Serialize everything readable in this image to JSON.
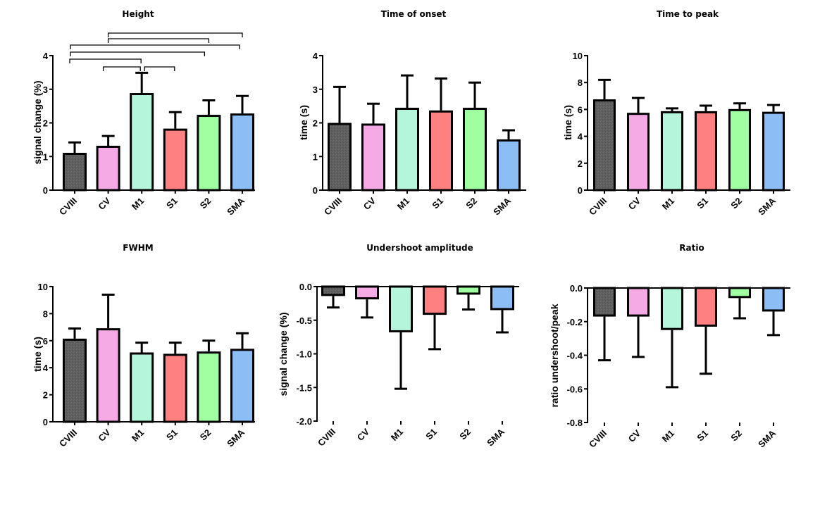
{
  "figure": {
    "categories": [
      "CVIII",
      "CV",
      "M1",
      "S1",
      "S2",
      "SMA"
    ],
    "colors": {
      "CVIII": "#5f5f5f",
      "CV": "#f5aae6",
      "M1": "#b4f5dc",
      "S1": "#ff8080",
      "S2": "#a0ffa0",
      "SMA": "#8cbef5",
      "outline": "#000000"
    }
  },
  "chart_data": [
    {
      "id": "height",
      "type": "bar",
      "title": "Height",
      "xlabel": "",
      "ylabel": "signal change (%)",
      "categories": [
        "CVIII",
        "CV",
        "M1",
        "S1",
        "S2",
        "SMA"
      ],
      "values": [
        1.11,
        1.32,
        2.89,
        1.83,
        2.24,
        2.28
      ],
      "error_upper": [
        1.42,
        1.61,
        3.49,
        2.32,
        2.67,
        2.8
      ],
      "ylim": [
        0,
        4
      ],
      "yticks": [
        0,
        1,
        2,
        3,
        4
      ],
      "ytick_labels": [
        "0",
        "1",
        "2",
        "3",
        "4"
      ],
      "grid": false,
      "significance_brackets": [
        {
          "from": "CV",
          "to": "SMA"
        },
        {
          "from": "CV",
          "to": "S2"
        },
        {
          "from": "CVIII",
          "to": "SMA"
        },
        {
          "from": "CVIII",
          "to": "S2"
        },
        {
          "from": "CVIII",
          "to": "M1"
        },
        {
          "from": "CV",
          "to": "M1"
        },
        {
          "from": "M1",
          "to": "S1"
        }
      ]
    },
    {
      "id": "time-of-onset",
      "type": "bar",
      "title": "Time of onset",
      "xlabel": "",
      "ylabel": "time (s)",
      "categories": [
        "CVIII",
        "CV",
        "M1",
        "S1",
        "S2",
        "SMA"
      ],
      "values": [
        2.0,
        1.98,
        2.45,
        2.37,
        2.45,
        1.51
      ],
      "error_upper": [
        3.07,
        2.57,
        3.41,
        3.32,
        3.2,
        1.78
      ],
      "ylim": [
        0,
        4
      ],
      "yticks": [
        0,
        1,
        2,
        3,
        4
      ],
      "ytick_labels": [
        "0",
        "1",
        "2",
        "3",
        "4"
      ],
      "grid": false
    },
    {
      "id": "time-to-peak",
      "type": "bar",
      "title": "Time to peak",
      "xlabel": "",
      "ylabel": "time (s)",
      "categories": [
        "CVIII",
        "CV",
        "M1",
        "S1",
        "S2",
        "SMA"
      ],
      "values": [
        6.75,
        5.75,
        5.87,
        5.87,
        6.03,
        5.83
      ],
      "error_upper": [
        8.2,
        6.85,
        6.08,
        6.28,
        6.45,
        6.33
      ],
      "ylim": [
        0,
        10
      ],
      "yticks": [
        0,
        2,
        4,
        6,
        8,
        10
      ],
      "ytick_labels": [
        "0",
        "2",
        "4",
        "6",
        "8",
        "10"
      ],
      "grid": false
    },
    {
      "id": "fwhm",
      "type": "bar",
      "title": "FWHM",
      "xlabel": "",
      "ylabel": "time (s)",
      "categories": [
        "CVIII",
        "CV",
        "M1",
        "S1",
        "S2",
        "SMA"
      ],
      "values": [
        6.15,
        6.92,
        5.13,
        5.03,
        5.2,
        5.4
      ],
      "error_upper": [
        6.9,
        9.4,
        5.85,
        5.85,
        6.0,
        6.55
      ],
      "ylim": [
        0,
        10
      ],
      "yticks": [
        0,
        2,
        4,
        6,
        8,
        10
      ],
      "ytick_labels": [
        "0",
        "2",
        "4",
        "6",
        "8",
        "10"
      ],
      "grid": false
    },
    {
      "id": "undershoot-amplitude",
      "type": "bar",
      "title": "Undershoot amplitude",
      "xlabel": "",
      "ylabel": "signal change (%)",
      "categories": [
        "CVIII",
        "CV",
        "M1",
        "S1",
        "S2",
        "SMA"
      ],
      "values": [
        -0.14,
        -0.19,
        -0.68,
        -0.42,
        -0.12,
        -0.35
      ],
      "error_lower": [
        -0.31,
        -0.46,
        -1.52,
        -0.93,
        -0.34,
        -0.68
      ],
      "ylim": [
        -2.0,
        0.0
      ],
      "yticks": [
        0.0,
        -0.5,
        -1.0,
        -1.5,
        -2.0
      ],
      "ytick_labels": [
        "0.0",
        "-0.5",
        "-1.0",
        "-1.5",
        "-2.0"
      ],
      "grid": false
    },
    {
      "id": "ratio",
      "type": "bar",
      "title": "Ratio",
      "xlabel": "",
      "ylabel": "ratio undershoot/peak",
      "categories": [
        "CVIII",
        "CV",
        "M1",
        "S1",
        "S2",
        "SMA"
      ],
      "values": [
        -0.17,
        -0.17,
        -0.25,
        -0.23,
        -0.06,
        -0.14
      ],
      "error_lower": [
        -0.43,
        -0.41,
        -0.59,
        -0.51,
        -0.18,
        -0.28
      ],
      "ylim": [
        -0.8,
        0.0
      ],
      "yticks": [
        0.0,
        -0.2,
        -0.4,
        -0.6,
        -0.8
      ],
      "ytick_labels": [
        "0.0",
        "-0.2",
        "-0.4",
        "-0.6",
        "-0.8"
      ],
      "grid": false
    }
  ]
}
